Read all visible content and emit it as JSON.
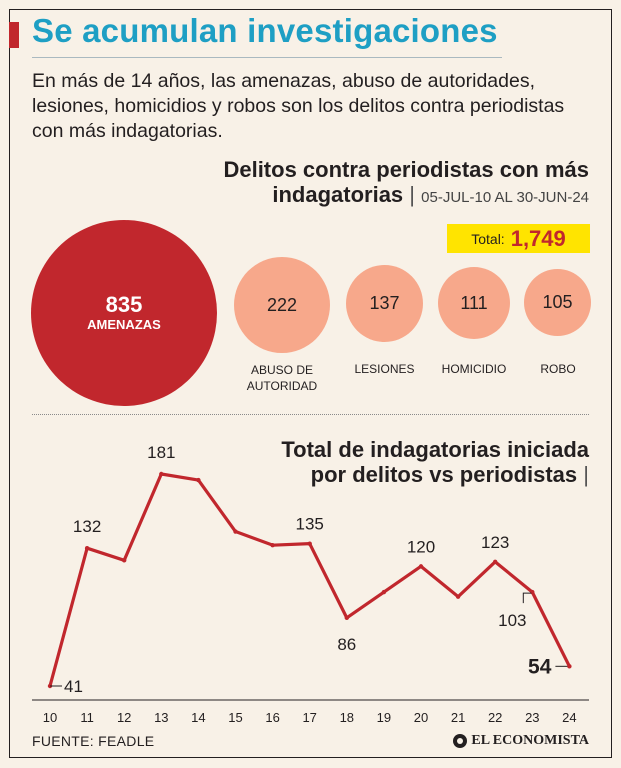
{
  "header": {
    "title": "Se acumulan investigaciones",
    "subtitle": "En más de 14 años, las amenazas, abuso de autoridades, lesiones, homicidios y robos son los delitos contra periodistas con más indagatorias."
  },
  "section1": {
    "title_line1": "Delitos contra periodistas con más",
    "title_line2": "indagatorias",
    "separator": "|",
    "date_range": "05-JUL-10 AL 30-JUN-24",
    "total_label": "Total:",
    "total_value": "1,749"
  },
  "section2": {
    "title_line1": "Total de indagatorias iniciada",
    "title_line2": "por delitos vs periodistas",
    "separator": "|"
  },
  "footer": {
    "source": "FUENTE: FEADLE",
    "logo": "EL ECONOMISTA"
  },
  "colors": {
    "accent": "#c1272d",
    "title_blue": "#1e9fc4",
    "bubble_light": "#f7a88b",
    "highlight": "#ffe400",
    "background": "#f8f1e7"
  },
  "chart_data": [
    {
      "type": "bubble",
      "categories": [
        "AMENAZAS",
        "ABUSO DE AUTORIDAD",
        "LESIONES",
        "HOMICIDIO",
        "ROBO"
      ],
      "values": [
        835,
        222,
        137,
        111,
        105
      ],
      "value_labels": [
        "835",
        "222",
        "137",
        "111",
        "105"
      ],
      "total": 1749
    },
    {
      "type": "line",
      "x": [
        "10",
        "11",
        "12",
        "13",
        "14",
        "15",
        "16",
        "17",
        "18",
        "19",
        "20",
        "21",
        "22",
        "23",
        "24"
      ],
      "values": [
        41,
        132,
        124,
        181,
        177,
        143,
        134,
        135,
        86,
        103,
        120,
        100,
        123,
        103,
        54
      ],
      "labeled_points": [
        {
          "x": "10",
          "label": "41"
        },
        {
          "x": "11",
          "label": "132"
        },
        {
          "x": "13",
          "label": "181"
        },
        {
          "x": "17",
          "label": "135"
        },
        {
          "x": "18",
          "label": "86"
        },
        {
          "x": "20",
          "label": "120"
        },
        {
          "x": "22",
          "label": "123"
        },
        {
          "x": "23",
          "label": "103"
        },
        {
          "x": "24",
          "label": "54"
        }
      ],
      "ylim": [
        41,
        181
      ],
      "grid": false
    }
  ]
}
